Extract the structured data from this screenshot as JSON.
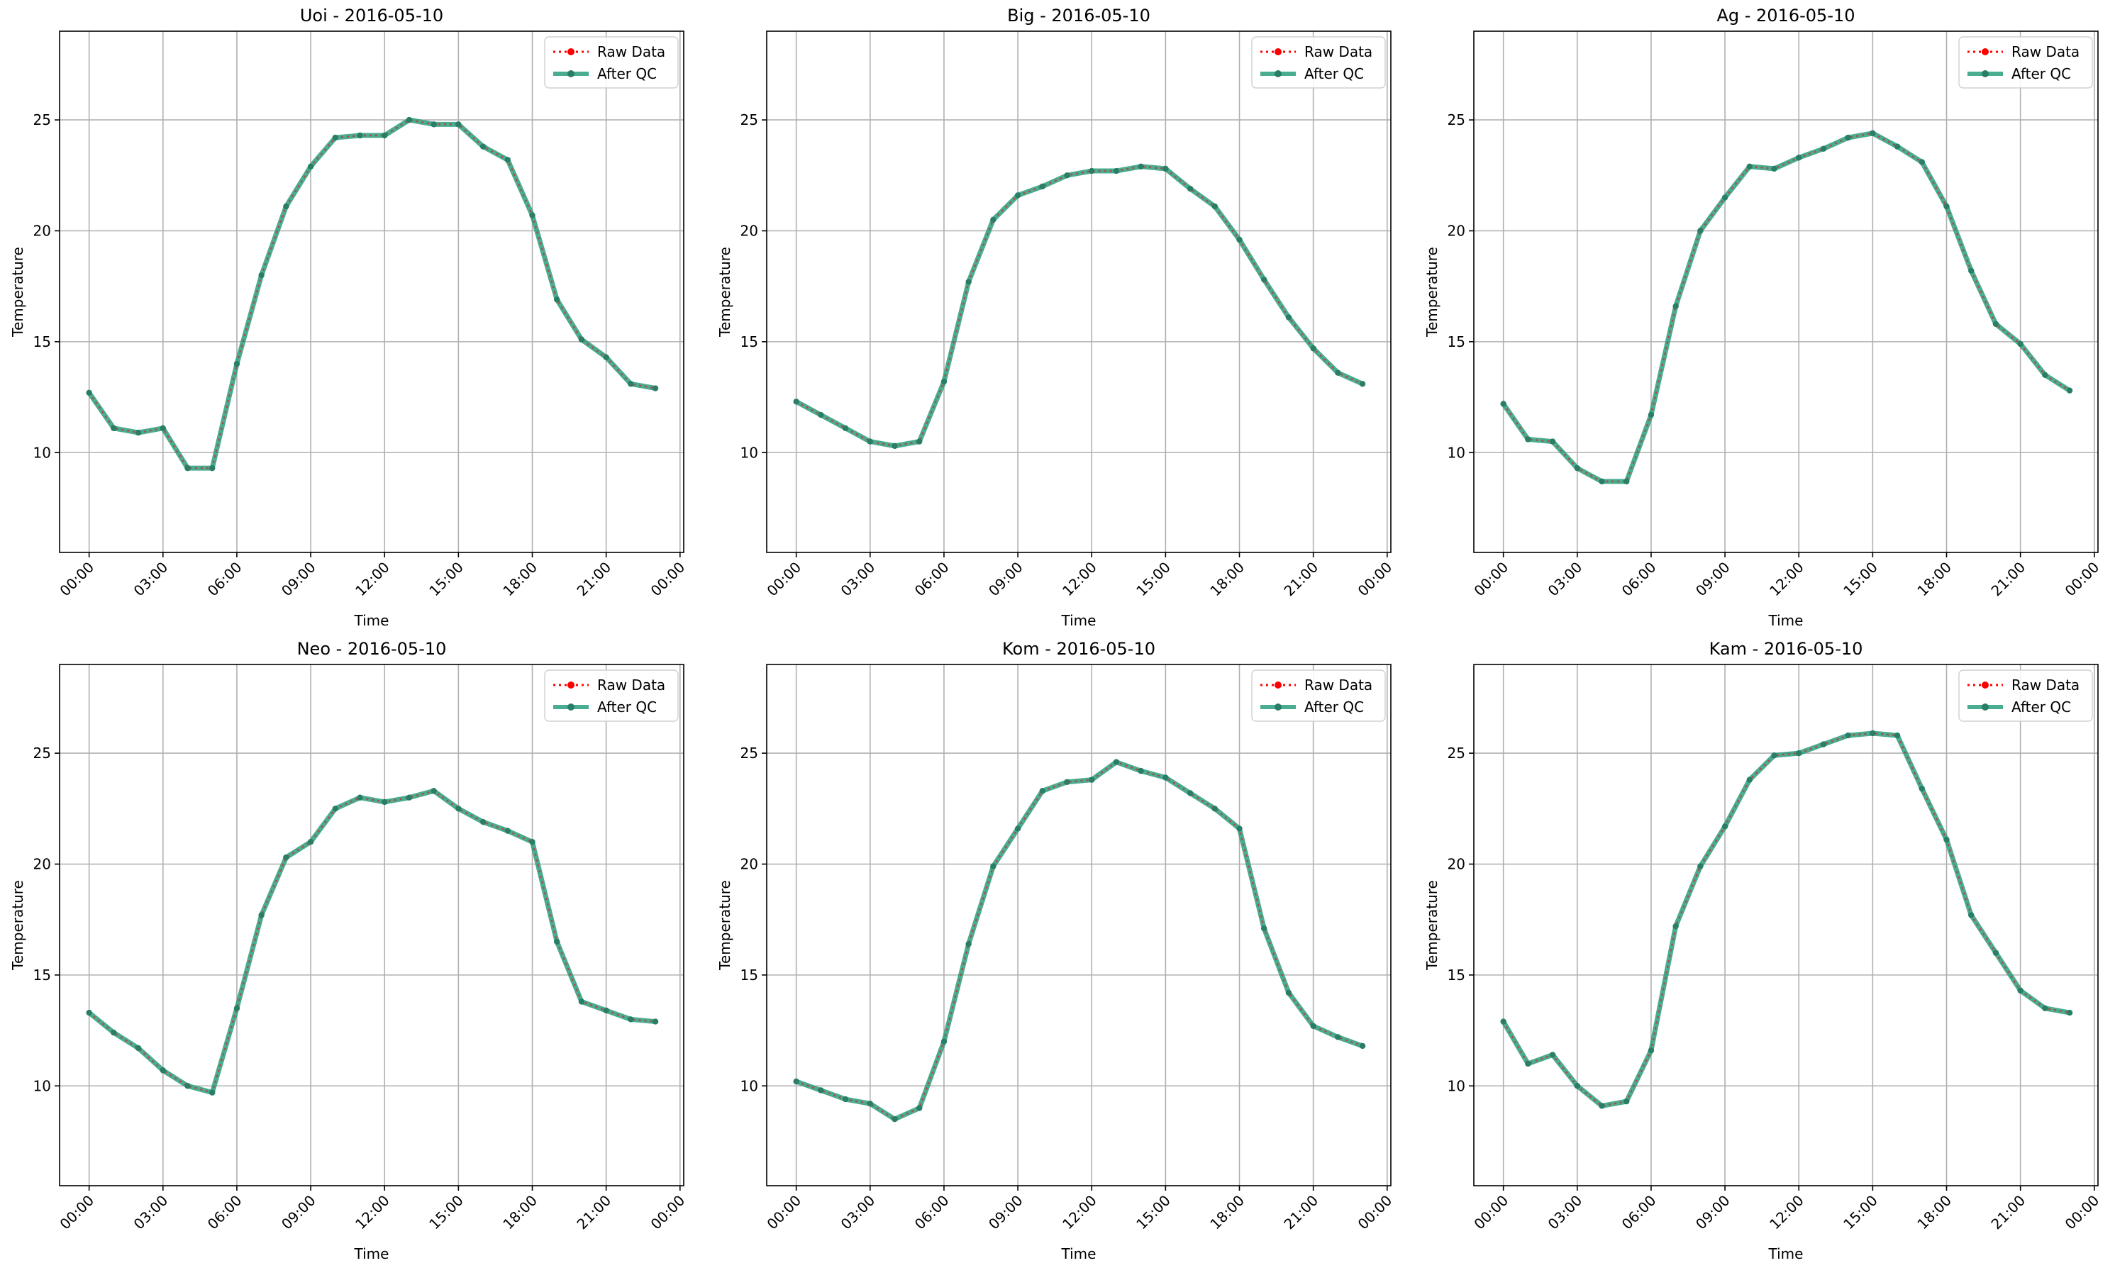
{
  "figure": {
    "legend_labels": [
      "Raw Data",
      "After QC"
    ],
    "colors": {
      "raw": "#ff0000",
      "qc": "#2a9d7c",
      "qc_marker": "#2a7d66",
      "grid": "#b0b0b0",
      "axis": "#000000"
    }
  },
  "chart_data": [
    {
      "type": "line",
      "title": "Uoi - 2016-05-10",
      "xlabel": "Time",
      "ylabel": "Temperature",
      "x_ticks": [
        "00:00",
        "03:00",
        "06:00",
        "09:00",
        "12:00",
        "15:00",
        "18:00",
        "21:00",
        "00:00"
      ],
      "y_ticks": [
        10,
        15,
        20,
        25
      ],
      "ylim": [
        5.5,
        29
      ],
      "xlim_hours": [
        -1.2,
        24.15
      ],
      "grid": true,
      "legend_position": "top-right",
      "x_hours": [
        0,
        1,
        2,
        3,
        4,
        5,
        6,
        7,
        8,
        9,
        10,
        11,
        12,
        13,
        14,
        15,
        16,
        17,
        18,
        19,
        20,
        21,
        22,
        23
      ],
      "series": [
        {
          "name": "Raw Data",
          "values": [
            12.7,
            11.1,
            10.9,
            11.1,
            9.3,
            9.3,
            14.0,
            18.0,
            21.1,
            22.9,
            24.2,
            24.3,
            24.3,
            25.0,
            24.8,
            24.8,
            23.8,
            23.2,
            20.7,
            16.9,
            15.1,
            14.3,
            13.1,
            12.9
          ]
        },
        {
          "name": "After QC",
          "values": [
            12.7,
            11.1,
            10.9,
            11.1,
            9.3,
            9.3,
            14.0,
            18.0,
            21.1,
            22.9,
            24.2,
            24.3,
            24.3,
            25.0,
            24.8,
            24.8,
            23.8,
            23.2,
            20.7,
            16.9,
            15.1,
            14.3,
            13.1,
            12.9
          ]
        }
      ]
    },
    {
      "type": "line",
      "title": "Big - 2016-05-10",
      "xlabel": "Time",
      "ylabel": "Temperature",
      "x_ticks": [
        "00:00",
        "03:00",
        "06:00",
        "09:00",
        "12:00",
        "15:00",
        "18:00",
        "21:00",
        "00:00"
      ],
      "y_ticks": [
        10,
        15,
        20,
        25
      ],
      "ylim": [
        5.5,
        29
      ],
      "xlim_hours": [
        -1.2,
        24.15
      ],
      "grid": true,
      "legend_position": "top-right",
      "x_hours": [
        0,
        1,
        2,
        3,
        4,
        5,
        6,
        7,
        8,
        9,
        10,
        11,
        12,
        13,
        14,
        15,
        16,
        17,
        18,
        19,
        20,
        21,
        22,
        23
      ],
      "series": [
        {
          "name": "Raw Data",
          "values": [
            12.3,
            11.7,
            11.1,
            10.5,
            10.3,
            10.5,
            13.2,
            17.7,
            20.5,
            21.6,
            22.0,
            22.5,
            22.7,
            22.7,
            22.9,
            22.8,
            21.9,
            21.1,
            19.6,
            17.8,
            16.1,
            14.7,
            13.6,
            13.1
          ]
        },
        {
          "name": "After QC",
          "values": [
            12.3,
            11.7,
            11.1,
            10.5,
            10.3,
            10.5,
            13.2,
            17.7,
            20.5,
            21.6,
            22.0,
            22.5,
            22.7,
            22.7,
            22.9,
            22.8,
            21.9,
            21.1,
            19.6,
            17.8,
            16.1,
            14.7,
            13.6,
            13.1
          ]
        }
      ]
    },
    {
      "type": "line",
      "title": "Ag - 2016-05-10",
      "xlabel": "Time",
      "ylabel": "Temperature",
      "x_ticks": [
        "00:00",
        "03:00",
        "06:00",
        "09:00",
        "12:00",
        "15:00",
        "18:00",
        "21:00",
        "00:00"
      ],
      "y_ticks": [
        10,
        15,
        20,
        25
      ],
      "ylim": [
        5.5,
        29
      ],
      "xlim_hours": [
        -1.2,
        24.15
      ],
      "grid": true,
      "legend_position": "top-right",
      "x_hours": [
        0,
        1,
        2,
        3,
        4,
        5,
        6,
        7,
        8,
        9,
        10,
        11,
        12,
        13,
        14,
        15,
        16,
        17,
        18,
        19,
        20,
        21,
        22,
        23
      ],
      "series": [
        {
          "name": "Raw Data",
          "values": [
            12.2,
            10.6,
            10.5,
            9.3,
            8.7,
            8.7,
            11.7,
            16.6,
            20.0,
            21.5,
            22.9,
            22.8,
            23.3,
            23.7,
            24.2,
            24.4,
            23.8,
            23.1,
            21.1,
            18.2,
            15.8,
            14.9,
            13.5,
            12.8
          ]
        },
        {
          "name": "After QC",
          "values": [
            12.2,
            10.6,
            10.5,
            9.3,
            8.7,
            8.7,
            11.7,
            16.6,
            20.0,
            21.5,
            22.9,
            22.8,
            23.3,
            23.7,
            24.2,
            24.4,
            23.8,
            23.1,
            21.1,
            18.2,
            15.8,
            14.9,
            13.5,
            12.8
          ]
        }
      ]
    },
    {
      "type": "line",
      "title": "Neo - 2016-05-10",
      "xlabel": "Time",
      "ylabel": "Temperature",
      "x_ticks": [
        "00:00",
        "03:00",
        "06:00",
        "09:00",
        "12:00",
        "15:00",
        "18:00",
        "21:00",
        "00:00"
      ],
      "y_ticks": [
        10,
        15,
        20,
        25
      ],
      "ylim": [
        5.5,
        29
      ],
      "xlim_hours": [
        -1.2,
        24.15
      ],
      "grid": true,
      "legend_position": "top-right",
      "x_hours": [
        0,
        1,
        2,
        3,
        4,
        5,
        6,
        7,
        8,
        9,
        10,
        11,
        12,
        13,
        14,
        15,
        16,
        17,
        18,
        19,
        20,
        21,
        22,
        23
      ],
      "series": [
        {
          "name": "Raw Data",
          "values": [
            13.3,
            12.4,
            11.7,
            10.7,
            10.0,
            9.7,
            13.5,
            17.7,
            20.3,
            21.0,
            22.5,
            23.0,
            22.8,
            23.0,
            23.3,
            22.5,
            21.9,
            21.5,
            21.0,
            16.5,
            13.8,
            13.4,
            13.0,
            12.9
          ]
        },
        {
          "name": "After QC",
          "values": [
            13.3,
            12.4,
            11.7,
            10.7,
            10.0,
            9.7,
            13.5,
            17.7,
            20.3,
            21.0,
            22.5,
            23.0,
            22.8,
            23.0,
            23.3,
            22.5,
            21.9,
            21.5,
            21.0,
            16.5,
            13.8,
            13.4,
            13.0,
            12.9
          ]
        }
      ]
    },
    {
      "type": "line",
      "title": "Kom - 2016-05-10",
      "xlabel": "Time",
      "ylabel": "Temperature",
      "x_ticks": [
        "00:00",
        "03:00",
        "06:00",
        "09:00",
        "12:00",
        "15:00",
        "18:00",
        "21:00",
        "00:00"
      ],
      "y_ticks": [
        10,
        15,
        20,
        25
      ],
      "ylim": [
        5.5,
        29
      ],
      "xlim_hours": [
        -1.2,
        24.15
      ],
      "grid": true,
      "legend_position": "top-right",
      "x_hours": [
        0,
        1,
        2,
        3,
        4,
        5,
        6,
        7,
        8,
        9,
        10,
        11,
        12,
        13,
        14,
        15,
        16,
        17,
        18,
        19,
        20,
        21,
        22,
        23
      ],
      "series": [
        {
          "name": "Raw Data",
          "values": [
            10.2,
            9.8,
            9.4,
            9.2,
            8.5,
            9.0,
            12.0,
            16.4,
            19.9,
            21.6,
            23.3,
            23.7,
            23.8,
            24.6,
            24.2,
            23.9,
            23.2,
            22.5,
            21.6,
            17.1,
            14.2,
            12.7,
            12.2,
            11.8
          ]
        },
        {
          "name": "After QC",
          "values": [
            10.2,
            9.8,
            9.4,
            9.2,
            8.5,
            9.0,
            12.0,
            16.4,
            19.9,
            21.6,
            23.3,
            23.7,
            23.8,
            24.6,
            24.2,
            23.9,
            23.2,
            22.5,
            21.6,
            17.1,
            14.2,
            12.7,
            12.2,
            11.8
          ]
        }
      ]
    },
    {
      "type": "line",
      "title": "Kam - 2016-05-10",
      "xlabel": "Time",
      "ylabel": "Temperature",
      "x_ticks": [
        "00:00",
        "03:00",
        "06:00",
        "09:00",
        "12:00",
        "15:00",
        "18:00",
        "21:00",
        "00:00"
      ],
      "y_ticks": [
        10,
        15,
        20,
        25
      ],
      "ylim": [
        5.5,
        29
      ],
      "xlim_hours": [
        -1.2,
        24.15
      ],
      "grid": true,
      "legend_position": "top-right",
      "x_hours": [
        0,
        1,
        2,
        3,
        4,
        5,
        6,
        7,
        8,
        9,
        10,
        11,
        12,
        13,
        14,
        15,
        16,
        17,
        18,
        19,
        20,
        21,
        22,
        23
      ],
      "series": [
        {
          "name": "Raw Data",
          "values": [
            12.9,
            11.0,
            11.4,
            10.0,
            9.1,
            9.3,
            11.6,
            17.2,
            19.9,
            21.7,
            23.8,
            24.9,
            25.0,
            25.4,
            25.8,
            25.9,
            25.8,
            23.4,
            21.1,
            17.7,
            16.0,
            14.3,
            13.5,
            13.3
          ]
        },
        {
          "name": "After QC",
          "values": [
            12.9,
            11.0,
            11.4,
            10.0,
            9.1,
            9.3,
            11.6,
            17.2,
            19.9,
            21.7,
            23.8,
            24.9,
            25.0,
            25.4,
            25.8,
            25.9,
            25.8,
            23.4,
            21.1,
            17.7,
            16.0,
            14.3,
            13.5,
            13.3
          ]
        }
      ]
    }
  ]
}
